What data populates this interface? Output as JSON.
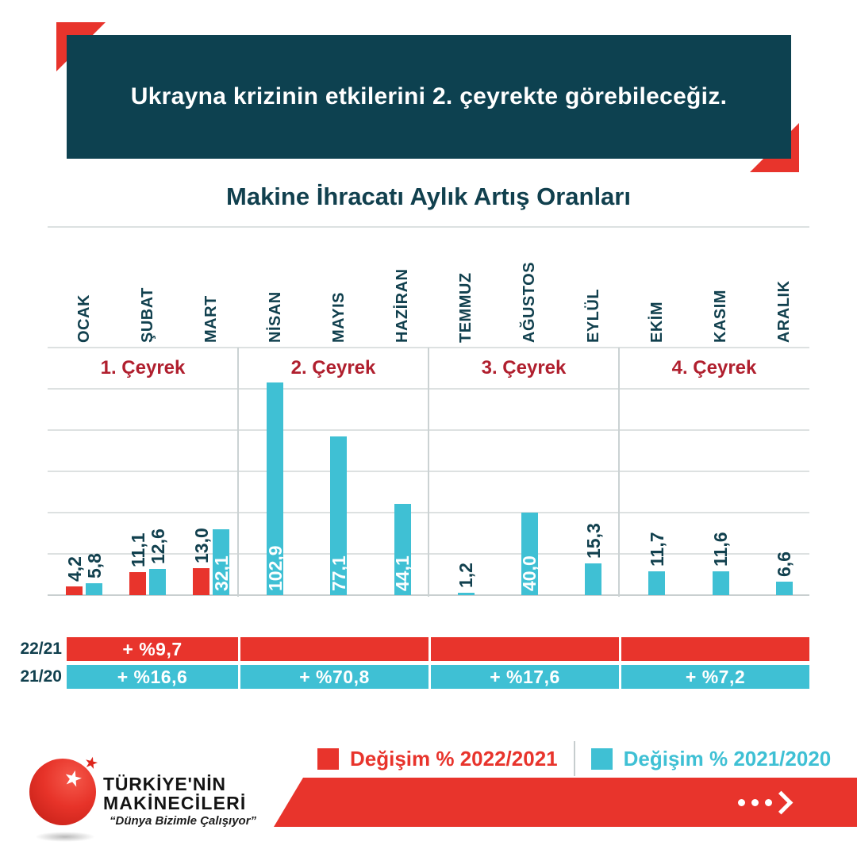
{
  "header": {
    "banner_text": "Ukrayna krizinin etkilerini 2. çeyrekte görebileceğiz."
  },
  "chart": {
    "title": "Makine İhracatı Aylık Artış Oranları"
  },
  "chart_data": {
    "type": "bar",
    "title": "Makine İhracatı Aylık Artış Oranları",
    "categories": [
      "OCAK",
      "ŞUBAT",
      "MART",
      "NİSAN",
      "MAYIS",
      "HAZİRAN",
      "TEMMUZ",
      "AĞUSTOS",
      "EYLÜL",
      "EKİM",
      "KASIM",
      "ARALIK"
    ],
    "quarters": [
      "1. Çeyrek",
      "2. Çeyrek",
      "3. Çeyrek",
      "4. Çeyrek"
    ],
    "series": [
      {
        "name": "Değişim % 2022/2021",
        "color": "#E8342C",
        "values": [
          4.2,
          11.1,
          13.0,
          null,
          null,
          null,
          null,
          null,
          null,
          null,
          null,
          null
        ],
        "labels": [
          "4,2",
          "11,1",
          "13,0",
          "",
          "",
          "",
          "",
          "",
          "",
          "",
          "",
          ""
        ]
      },
      {
        "name": "Değişim % 2021/2020",
        "color": "#3FC0D4",
        "values": [
          5.8,
          12.6,
          32.1,
          102.9,
          77.1,
          44.1,
          1.2,
          40.0,
          15.3,
          11.7,
          11.6,
          6.6
        ],
        "labels": [
          "5,8",
          "12,6",
          "32,1",
          "102,9",
          "77,1",
          "44,1",
          "1,2",
          "40,0",
          "15,3",
          "11,7",
          "11,6",
          "6,6"
        ]
      }
    ],
    "ylim": [
      0,
      120
    ],
    "gridline_step": 20,
    "grid": true,
    "legend_position": "bottom"
  },
  "summary": {
    "rows": [
      {
        "label": "22/21",
        "color": "#E8342C",
        "segments": [
          "+ %9,7",
          "",
          "",
          ""
        ]
      },
      {
        "label": "21/20",
        "color": "#3FC0D4",
        "segments": [
          "+ %16,6",
          "+ %70,8",
          "+ %17,6",
          "+ %7,2"
        ]
      }
    ]
  },
  "legend": {
    "items": [
      {
        "label": "Değişim % 2022/2021",
        "color": "#E8342C"
      },
      {
        "label": "Değişim % 2021/2020",
        "color": "#3FC0D4"
      }
    ]
  },
  "logo": {
    "line1": "TÜRKİYE'NİN",
    "line2": "MAKİNECİLERİ",
    "tagline": "“Dünya Bizimle Çalışıyor”"
  },
  "colors": {
    "red": "#E8342C",
    "teal": "#3FC0D4",
    "header_bg": "#0D4150",
    "quarter_label": "#B01F2E",
    "dark_text": "#11404E"
  }
}
